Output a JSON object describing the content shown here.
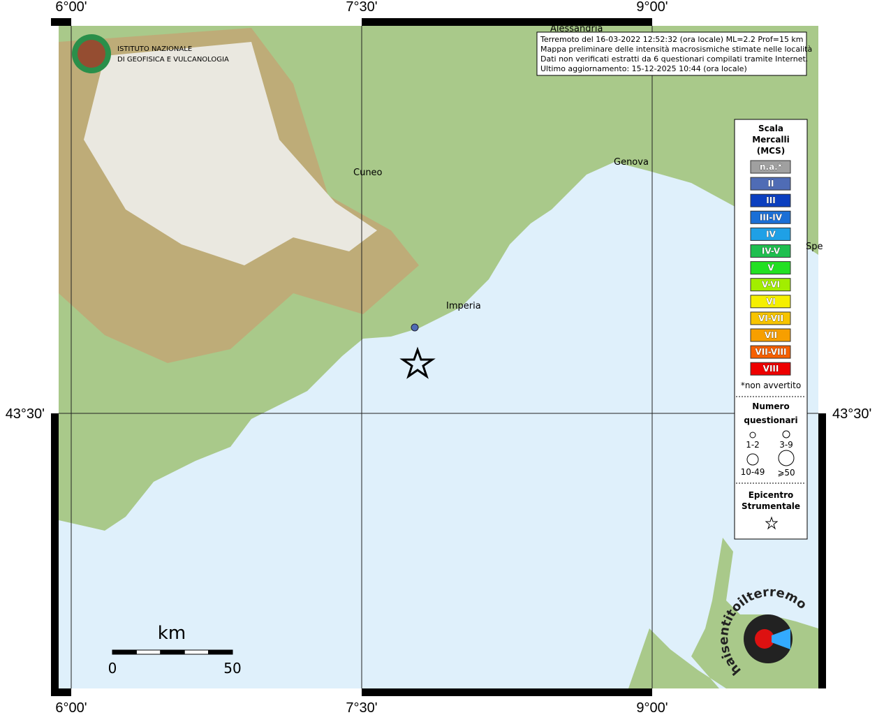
{
  "frame": {
    "top_labels": [
      "6°00'",
      "7°30'",
      "9°00'"
    ],
    "bottom_labels": [
      "6°00'",
      "7°30'",
      "9°00'"
    ],
    "left_label": "43°30'",
    "right_label": "43°30'"
  },
  "logo": {
    "line1": "ISTITUTO NAZIONALE",
    "line2": "DI GEOFISICA E VULCANOLOGIA"
  },
  "info": [
    "Terremoto del 16-03-2022 12:52:32 (ora locale) ML=2.2 Prof=15 km",
    "Mappa preliminare delle intensità macrosismiche stimate nelle località",
    "Dati non verificati estratti da 6 questionari compilati tramite Internet.",
    "Ultimo aggiornamento: 15-12-2025 10:44 (ora locale)"
  ],
  "places": [
    "Alessandria",
    "Cuneo",
    "Genova",
    "Imperia",
    "Spe"
  ],
  "legend": {
    "title": [
      "Scala",
      "Mercalli",
      "(MCS)"
    ],
    "items": [
      {
        "label": "n.a.*",
        "color": "#a0a0a0"
      },
      {
        "label": "II",
        "color": "#4f6cb5"
      },
      {
        "label": "III",
        "color": "#0b3fbf"
      },
      {
        "label": "III-IV",
        "color": "#1a6fd6"
      },
      {
        "label": "IV",
        "color": "#1fa0e6"
      },
      {
        "label": "IV-V",
        "color": "#1fbf4f"
      },
      {
        "label": "V",
        "color": "#22e022"
      },
      {
        "label": "V-VI",
        "color": "#a2ee00"
      },
      {
        "label": "VI",
        "color": "#f5ef00"
      },
      {
        "label": "VI-VII",
        "color": "#f7c400"
      },
      {
        "label": "VII",
        "color": "#f79f00"
      },
      {
        "label": "VII-VIII",
        "color": "#f65f00"
      },
      {
        "label": "VIII",
        "color": "#ee0000"
      }
    ],
    "note": "*non avvertito",
    "count_title": [
      "Numero",
      "questionari"
    ],
    "counts": [
      "1-2",
      "3-9",
      "10-49",
      "⩾50"
    ],
    "epi_title": [
      "Epicentro",
      "Strumentale"
    ]
  },
  "scale": {
    "unit": "km",
    "start": "0",
    "end": "50"
  },
  "brand": "haisentitoilterremoto.it"
}
